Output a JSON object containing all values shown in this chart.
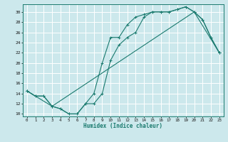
{
  "xlabel": "Humidex (Indice chaleur)",
  "bg_color": "#cce8ec",
  "grid_color": "#ffffff",
  "line_color": "#1a7a6e",
  "xlim": [
    -0.5,
    23.5
  ],
  "ylim": [
    9.5,
    31.5
  ],
  "xticks": [
    0,
    1,
    2,
    3,
    4,
    5,
    6,
    7,
    8,
    9,
    10,
    11,
    12,
    13,
    14,
    15,
    16,
    17,
    18,
    19,
    20,
    21,
    22,
    23
  ],
  "yticks": [
    10,
    12,
    14,
    16,
    18,
    20,
    22,
    24,
    26,
    28,
    30
  ],
  "line1_x": [
    0,
    1,
    2,
    3,
    4,
    5,
    6,
    7,
    8,
    9,
    10,
    11,
    12,
    13,
    14,
    15,
    16,
    17,
    18,
    19,
    20,
    21,
    22,
    23
  ],
  "line1_y": [
    14.5,
    13.5,
    13.5,
    11.5,
    11,
    10,
    10,
    12,
    14,
    20,
    25,
    25,
    27.5,
    29,
    29.5,
    30,
    30,
    30,
    30.5,
    31,
    30,
    28.5,
    25,
    22
  ],
  "line2_x": [
    0,
    1,
    2,
    3,
    4,
    5,
    6,
    7,
    8,
    9,
    10,
    11,
    12,
    13,
    14,
    15,
    16,
    17,
    18,
    19,
    20,
    21,
    22,
    23
  ],
  "line2_y": [
    14.5,
    13.5,
    13.5,
    11.5,
    11,
    10,
    10,
    12,
    12,
    14,
    20.5,
    23.5,
    25,
    26,
    29,
    30,
    30,
    30,
    30.5,
    31,
    30,
    28.5,
    25,
    22
  ],
  "line3_x": [
    0,
    3,
    20,
    23
  ],
  "line3_y": [
    14.5,
    11.5,
    30,
    22
  ]
}
